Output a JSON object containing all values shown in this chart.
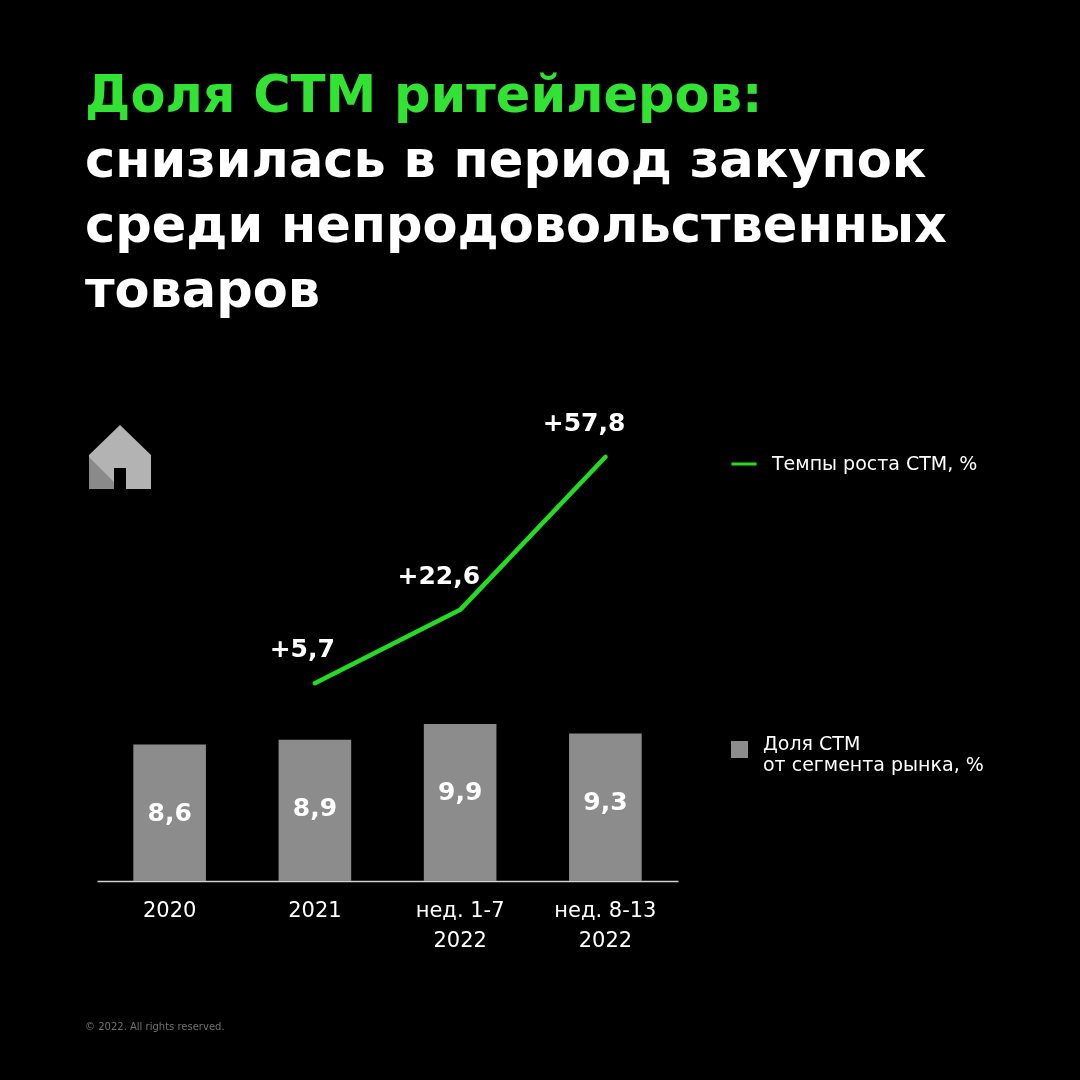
{
  "chart_data": [
    {
      "type": "line",
      "title": "Доля СТМ ритейлеров:",
      "subtitle": "снизилась в период закупок среди непродовольственных товаров",
      "categories": [
        null,
        null,
        null,
        null
      ],
      "tick_labels": false,
      "series": [
        {
          "name": "Темпы роста СТМ, %",
          "color": "#22dd22",
          "values": [
            null,
            5.7,
            22.6,
            57.8
          ],
          "value_labels": [
            null,
            "+5,7",
            "+22,6",
            "+57,8"
          ]
        }
      ],
      "legend": "right"
    },
    {
      "type": "bar",
      "categories": [
        "2020",
        "2021",
        "нед. 1-7 2022",
        "нед. 8-13 2022"
      ],
      "series": [
        {
          "name": "Доля СТМ от сегмента рынка, %",
          "color": "#8c8c8c",
          "values": [
            8.6,
            8.9,
            9.9,
            9.3
          ],
          "value_labels": [
            "8,6",
            "8,9",
            "9,9",
            "9,3"
          ]
        }
      ],
      "legend": "right",
      "annotations": [
        "© 2022. All rights reserved."
      ]
    }
  ]
}
